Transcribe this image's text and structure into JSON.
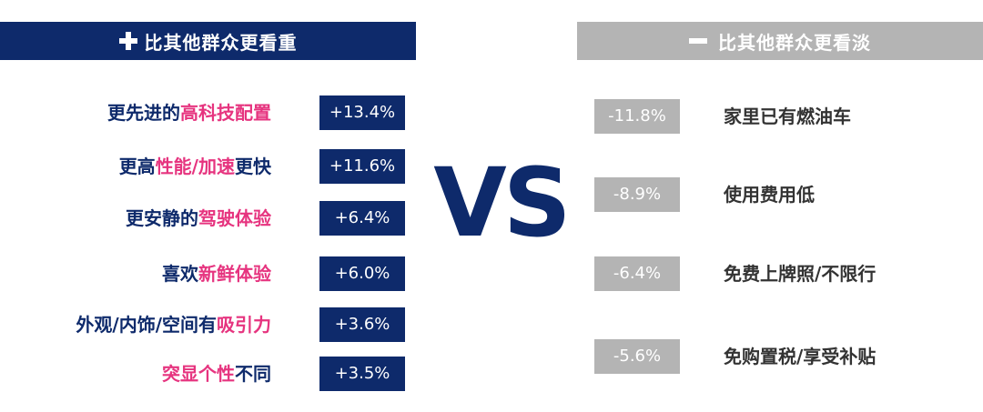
{
  "colors": {
    "navy": "#0e2a6b",
    "pink": "#e6347f",
    "gray": "#b4b4b4",
    "dark_text": "#333333"
  },
  "header_left": {
    "icon": "plus-icon",
    "text": "比其他群众更看重"
  },
  "header_right": {
    "icon": "minus-icon",
    "text": "比其他群众更看淡"
  },
  "vs_text": "VS",
  "chart_data": [
    {
      "type": "table",
      "title": "比其他群众更看重",
      "rows": [
        {
          "label_parts": [
            {
              "text": "更先进的",
              "accent": false
            },
            {
              "text": "高科技配置",
              "accent": true
            }
          ],
          "value": "+13.4%"
        },
        {
          "label_parts": [
            {
              "text": "更高",
              "accent": false
            },
            {
              "text": "性能/加速",
              "accent": true
            },
            {
              "text": "更快",
              "accent": false
            }
          ],
          "value": "+11.6%"
        },
        {
          "label_parts": [
            {
              "text": "更安静的",
              "accent": false
            },
            {
              "text": "驾驶体验",
              "accent": true
            }
          ],
          "value": "+6.4%"
        },
        {
          "label_parts": [
            {
              "text": "喜欢",
              "accent": false
            },
            {
              "text": "新鲜体验",
              "accent": true
            }
          ],
          "value": "+6.0%"
        },
        {
          "label_parts": [
            {
              "text": "外观/内饰/空间有",
              "accent": false
            },
            {
              "text": "吸引力",
              "accent": true
            }
          ],
          "value": "+3.6%"
        },
        {
          "label_parts": [
            {
              "text": "突显个性",
              "accent": true
            },
            {
              "text": "不同",
              "accent": false
            }
          ],
          "value": "+3.5%"
        }
      ]
    },
    {
      "type": "table",
      "title": "比其他群众更看淡",
      "rows": [
        {
          "label": "家里已有燃油车",
          "value": "-11.8%"
        },
        {
          "label": "使用费用低",
          "value": "-8.9%"
        },
        {
          "label": "免费上牌照/不限行",
          "value": "-6.4%"
        },
        {
          "label": "免购置税/享受补贴",
          "value": "-5.6%"
        }
      ]
    }
  ]
}
